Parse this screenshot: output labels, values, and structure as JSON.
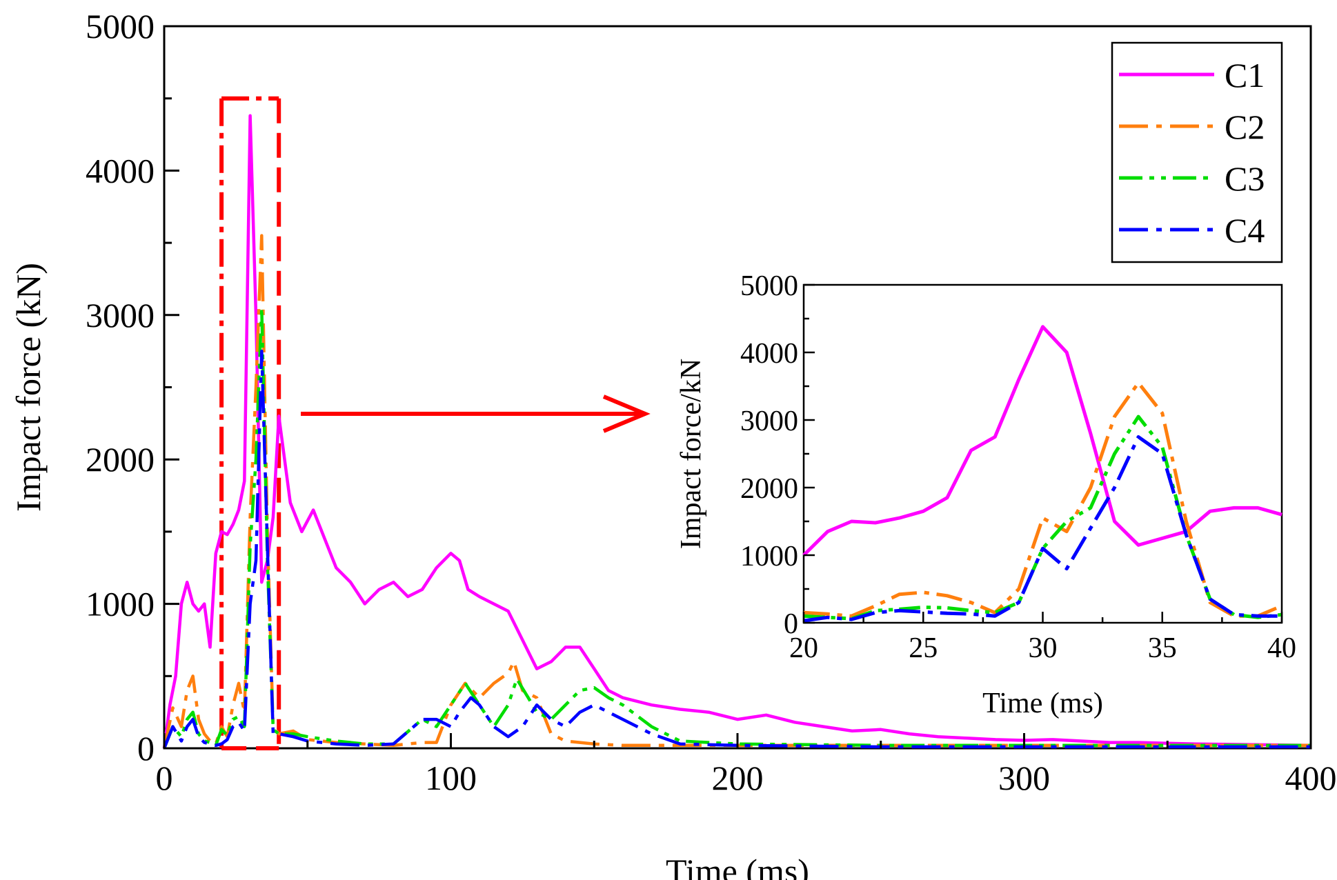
{
  "chart_data": [
    {
      "type": "line",
      "xlabel": "Time (ms)",
      "ylabel": "Impact force (kN)",
      "xlim": [
        0,
        400
      ],
      "ylim": [
        0,
        5000
      ],
      "xticks": [
        "0",
        "100",
        "200",
        "300",
        "400"
      ],
      "yticks": [
        "0",
        "1000",
        "2000",
        "3000",
        "4000",
        "5000"
      ],
      "legend": {
        "position": "top-right",
        "entries": [
          "C1",
          "C2",
          "C3",
          "C4"
        ]
      },
      "highlight_box": {
        "x": [
          20,
          40
        ],
        "y": [
          0,
          4500
        ]
      },
      "series": [
        {
          "name": "C1",
          "color": "#ff00ff",
          "style": "solid",
          "x": [
            0,
            2,
            4,
            6,
            8,
            10,
            12,
            14,
            16,
            18,
            20,
            22,
            24,
            26,
            28,
            30,
            32,
            34,
            36,
            38,
            40,
            44,
            48,
            52,
            56,
            60,
            65,
            70,
            75,
            80,
            85,
            90,
            95,
            100,
            103,
            106,
            110,
            115,
            120,
            125,
            130,
            135,
            140,
            145,
            150,
            155,
            160,
            170,
            180,
            190,
            200,
            210,
            220,
            230,
            240,
            250,
            260,
            270,
            280,
            290,
            300,
            310,
            320,
            330,
            340,
            350,
            360,
            380,
            400
          ],
          "y": [
            0,
            300,
            500,
            1000,
            1150,
            1000,
            950,
            1000,
            700,
            1350,
            1500,
            1480,
            1550,
            1650,
            1850,
            4380,
            3000,
            1150,
            1300,
            1600,
            2300,
            1700,
            1500,
            1650,
            1450,
            1250,
            1150,
            1000,
            1100,
            1150,
            1050,
            1100,
            1250,
            1350,
            1300,
            1100,
            1050,
            1000,
            950,
            750,
            550,
            600,
            700,
            700,
            550,
            400,
            350,
            300,
            270,
            250,
            200,
            230,
            180,
            150,
            120,
            130,
            100,
            80,
            70,
            60,
            55,
            60,
            50,
            40,
            40,
            35,
            30,
            25,
            20
          ]
        },
        {
          "name": "C2",
          "color": "#ff7f0e",
          "style": "dashdot",
          "x": [
            0,
            3,
            6,
            8,
            10,
            12,
            14,
            16,
            18,
            20,
            22,
            24,
            26,
            28,
            30,
            32,
            34,
            36,
            38,
            40,
            45,
            50,
            60,
            70,
            80,
            90,
            95,
            100,
            105,
            110,
            115,
            120,
            122,
            125,
            130,
            135,
            140,
            150,
            160,
            180,
            200,
            250,
            300,
            350,
            400
          ],
          "y": [
            0,
            280,
            150,
            400,
            500,
            200,
            100,
            50,
            30,
            150,
            80,
            300,
            450,
            250,
            1600,
            2500,
            3550,
            1500,
            150,
            100,
            120,
            60,
            40,
            30,
            20,
            40,
            40,
            300,
            450,
            350,
            450,
            520,
            600,
            400,
            350,
            100,
            50,
            30,
            20,
            20,
            20,
            20,
            20,
            20,
            20
          ]
        },
        {
          "name": "C3",
          "color": "#00dd00",
          "style": "dashdotdot",
          "x": [
            0,
            3,
            6,
            8,
            10,
            12,
            14,
            16,
            18,
            20,
            22,
            24,
            26,
            28,
            30,
            32,
            34,
            36,
            38,
            40,
            45,
            50,
            60,
            70,
            80,
            90,
            95,
            100,
            105,
            110,
            115,
            120,
            123,
            127,
            130,
            135,
            140,
            145,
            150,
            155,
            160,
            170,
            180,
            200,
            250,
            300,
            350,
            400
          ],
          "y": [
            0,
            150,
            80,
            200,
            250,
            100,
            50,
            40,
            20,
            130,
            90,
            200,
            220,
            150,
            1400,
            2000,
            3050,
            1300,
            130,
            100,
            100,
            80,
            50,
            30,
            30,
            200,
            150,
            300,
            450,
            300,
            150,
            300,
            480,
            350,
            250,
            200,
            300,
            400,
            420,
            350,
            300,
            150,
            50,
            30,
            20,
            20,
            20,
            20
          ]
        },
        {
          "name": "C4",
          "color": "#0000ff",
          "style": "dashdot",
          "x": [
            0,
            3,
            6,
            8,
            10,
            12,
            14,
            16,
            18,
            20,
            22,
            24,
            26,
            28,
            30,
            32,
            34,
            36,
            38,
            40,
            45,
            50,
            60,
            70,
            80,
            90,
            95,
            100,
            103,
            107,
            110,
            115,
            120,
            125,
            130,
            135,
            140,
            145,
            150,
            155,
            160,
            170,
            180,
            200,
            250,
            300,
            350,
            400
          ],
          "y": [
            0,
            150,
            50,
            150,
            200,
            80,
            40,
            30,
            20,
            30,
            60,
            150,
            180,
            120,
            1000,
            1300,
            2750,
            1400,
            100,
            100,
            80,
            50,
            30,
            20,
            30,
            200,
            200,
            150,
            250,
            350,
            300,
            150,
            80,
            150,
            300,
            200,
            150,
            250,
            300,
            250,
            200,
            100,
            30,
            20,
            10,
            10,
            10,
            10
          ]
        }
      ]
    },
    {
      "type": "line",
      "inset": true,
      "xlabel": "Time (ms)",
      "ylabel": "Impact force/kN",
      "xlim": [
        20,
        40
      ],
      "ylim": [
        0,
        5000
      ],
      "xticks": [
        "20",
        "25",
        "30",
        "35",
        "40"
      ],
      "yticks": [
        "0",
        "1000",
        "2000",
        "3000",
        "4000",
        "5000"
      ],
      "series": [
        {
          "name": "C1",
          "color": "#ff00ff",
          "style": "solid",
          "x": [
            20,
            21,
            22,
            23,
            24,
            25,
            26,
            27,
            28,
            29,
            30,
            31,
            32,
            33,
            34,
            35,
            36,
            37,
            38,
            39,
            40
          ],
          "y": [
            1000,
            1350,
            1500,
            1480,
            1550,
            1650,
            1850,
            2550,
            2750,
            3600,
            4380,
            4000,
            2800,
            1500,
            1150,
            1250,
            1350,
            1650,
            1700,
            1700,
            1600
          ]
        },
        {
          "name": "C2",
          "color": "#ff7f0e",
          "style": "dashdot",
          "x": [
            20,
            21,
            22,
            23,
            24,
            25,
            26,
            27,
            28,
            29,
            30,
            31,
            32,
            33,
            34,
            35,
            36,
            37,
            38,
            39,
            40
          ],
          "y": [
            150,
            130,
            100,
            250,
            420,
            450,
            400,
            300,
            150,
            500,
            1550,
            1350,
            2000,
            3050,
            3550,
            3100,
            1500,
            300,
            100,
            100,
            250
          ]
        },
        {
          "name": "C3",
          "color": "#00dd00",
          "style": "dashdotdot",
          "x": [
            20,
            21,
            22,
            23,
            24,
            25,
            26,
            27,
            28,
            29,
            30,
            31,
            32,
            33,
            34,
            35,
            36,
            37,
            38,
            39,
            40
          ],
          "y": [
            100,
            80,
            60,
            180,
            200,
            230,
            220,
            180,
            150,
            300,
            1100,
            1500,
            1700,
            2500,
            3050,
            2600,
            1300,
            350,
            120,
            80,
            120
          ]
        },
        {
          "name": "C4",
          "color": "#0000ff",
          "style": "dashdot",
          "x": [
            20,
            21,
            22,
            23,
            24,
            25,
            26,
            27,
            28,
            29,
            30,
            31,
            32,
            33,
            34,
            35,
            36,
            37,
            38,
            39,
            40
          ],
          "y": [
            30,
            80,
            50,
            150,
            180,
            160,
            140,
            130,
            100,
            300,
            1100,
            800,
            1400,
            2000,
            2750,
            2500,
            1300,
            350,
            120,
            100,
            100
          ]
        }
      ]
    }
  ]
}
